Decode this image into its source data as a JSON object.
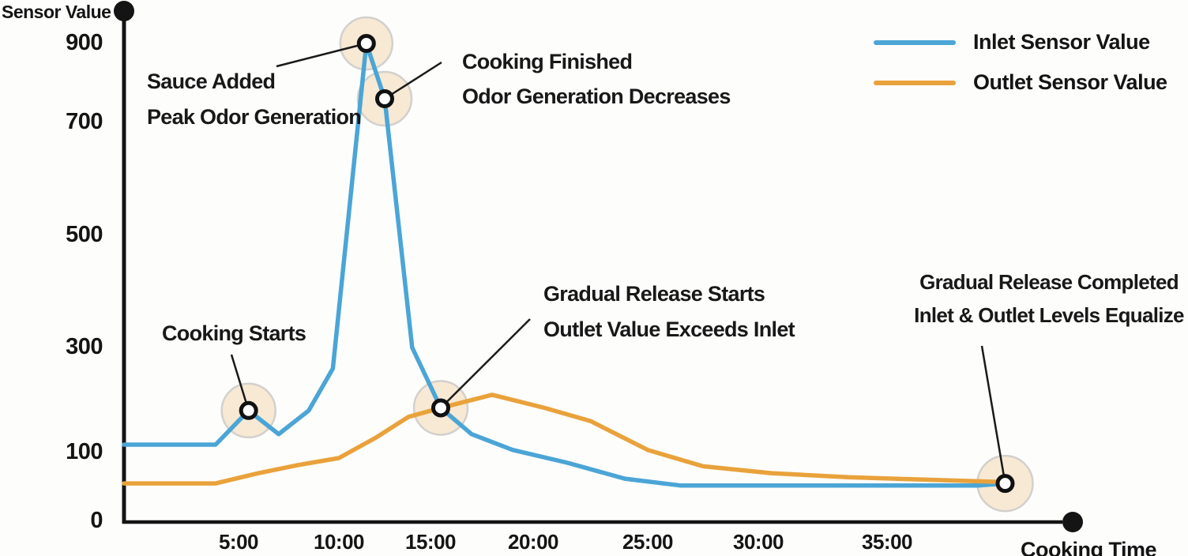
{
  "y_axis_title": "Sensor Value",
  "x_axis_title": "Cooking Time",
  "y_ticks": [
    "900",
    "700",
    "500",
    "300",
    "100",
    "0"
  ],
  "x_ticks": [
    "5:00",
    "10:00",
    "15:00",
    "20:00",
    "25:00",
    "30:00",
    "35:00"
  ],
  "legend": {
    "position": "top-right",
    "items": [
      {
        "label": "Inlet Sensor Value",
        "color": "#4ba5d6"
      },
      {
        "label": "Outlet Sensor Value",
        "color": "#e9a23b"
      }
    ]
  },
  "colors": {
    "inlet": "#4ba5d6",
    "outlet": "#e9a23b",
    "axis": "#141414",
    "leader": "#1a1a1a",
    "marker_fill": "#ffffff",
    "marker_ring": "#111111",
    "halo_fill": "#f6e7cf",
    "halo_ring": "#d3d0cc"
  },
  "chart_data": {
    "type": "line",
    "title": "",
    "xlabel": "Cooking Time",
    "ylabel": "Sensor Value",
    "x_unit": "minutes (shown as mm:ss)",
    "x_tick_labels": [
      "5:00",
      "10:00",
      "15:00",
      "20:00",
      "25:00",
      "30:00",
      "35:00"
    ],
    "x_tick_minutes": [
      5,
      10,
      15,
      20,
      25,
      30,
      35
    ],
    "y_tick_values": [
      0,
      100,
      300,
      500,
      700,
      900
    ],
    "ylim": [
      0,
      950
    ],
    "xlim_minutes": [
      0,
      44
    ],
    "grid": false,
    "legend_position": "top-right",
    "series": [
      {
        "name": "Inlet Sensor Value",
        "color": "#4ba5d6",
        "points": [
          [
            0,
            115
          ],
          [
            4,
            115
          ],
          [
            5.5,
            180
          ],
          [
            7,
            135
          ],
          [
            8.5,
            180
          ],
          [
            9.7,
            260
          ],
          [
            11.5,
            900
          ],
          [
            12.5,
            760
          ],
          [
            14,
            300
          ],
          [
            15.5,
            185
          ],
          [
            17,
            135
          ],
          [
            19,
            105
          ],
          [
            21.5,
            85
          ],
          [
            24,
            62
          ],
          [
            26.5,
            52
          ],
          [
            40,
            52
          ],
          [
            41.5,
            55
          ]
        ]
      },
      {
        "name": "Outlet Sensor Value",
        "color": "#e9a23b",
        "points": [
          [
            0,
            55
          ],
          [
            4,
            55
          ],
          [
            6,
            70
          ],
          [
            8,
            82
          ],
          [
            10,
            92
          ],
          [
            12,
            128
          ],
          [
            13.8,
            168
          ],
          [
            15.5,
            185
          ],
          [
            18,
            210
          ],
          [
            20.5,
            185
          ],
          [
            22.5,
            160
          ],
          [
            25,
            105
          ],
          [
            27.5,
            80
          ],
          [
            30.5,
            70
          ],
          [
            33.5,
            64
          ],
          [
            36.5,
            61
          ],
          [
            41.5,
            57
          ]
        ]
      }
    ],
    "events": [
      {
        "t": 5.5,
        "value": 180,
        "series": "Inlet",
        "lines": [
          "Cooking Starts"
        ]
      },
      {
        "t": 11.5,
        "value": 900,
        "series": "Inlet",
        "lines": [
          "Sauce Added",
          "Peak Odor Generation"
        ]
      },
      {
        "t": 12.5,
        "value": 760,
        "series": "Inlet",
        "lines": [
          "Cooking Finished",
          "Odor Generation Decreases"
        ]
      },
      {
        "t": 15.5,
        "value": 185,
        "series": "Inlet+Outlet",
        "lines": [
          "Gradual Release Starts",
          "Outlet Value Exceeds Inlet"
        ]
      },
      {
        "t": 41.5,
        "value": 55,
        "series": "Inlet+Outlet",
        "lines": [
          "Gradual Release Completed",
          "Inlet & Outlet Levels Equalize"
        ]
      }
    ]
  }
}
